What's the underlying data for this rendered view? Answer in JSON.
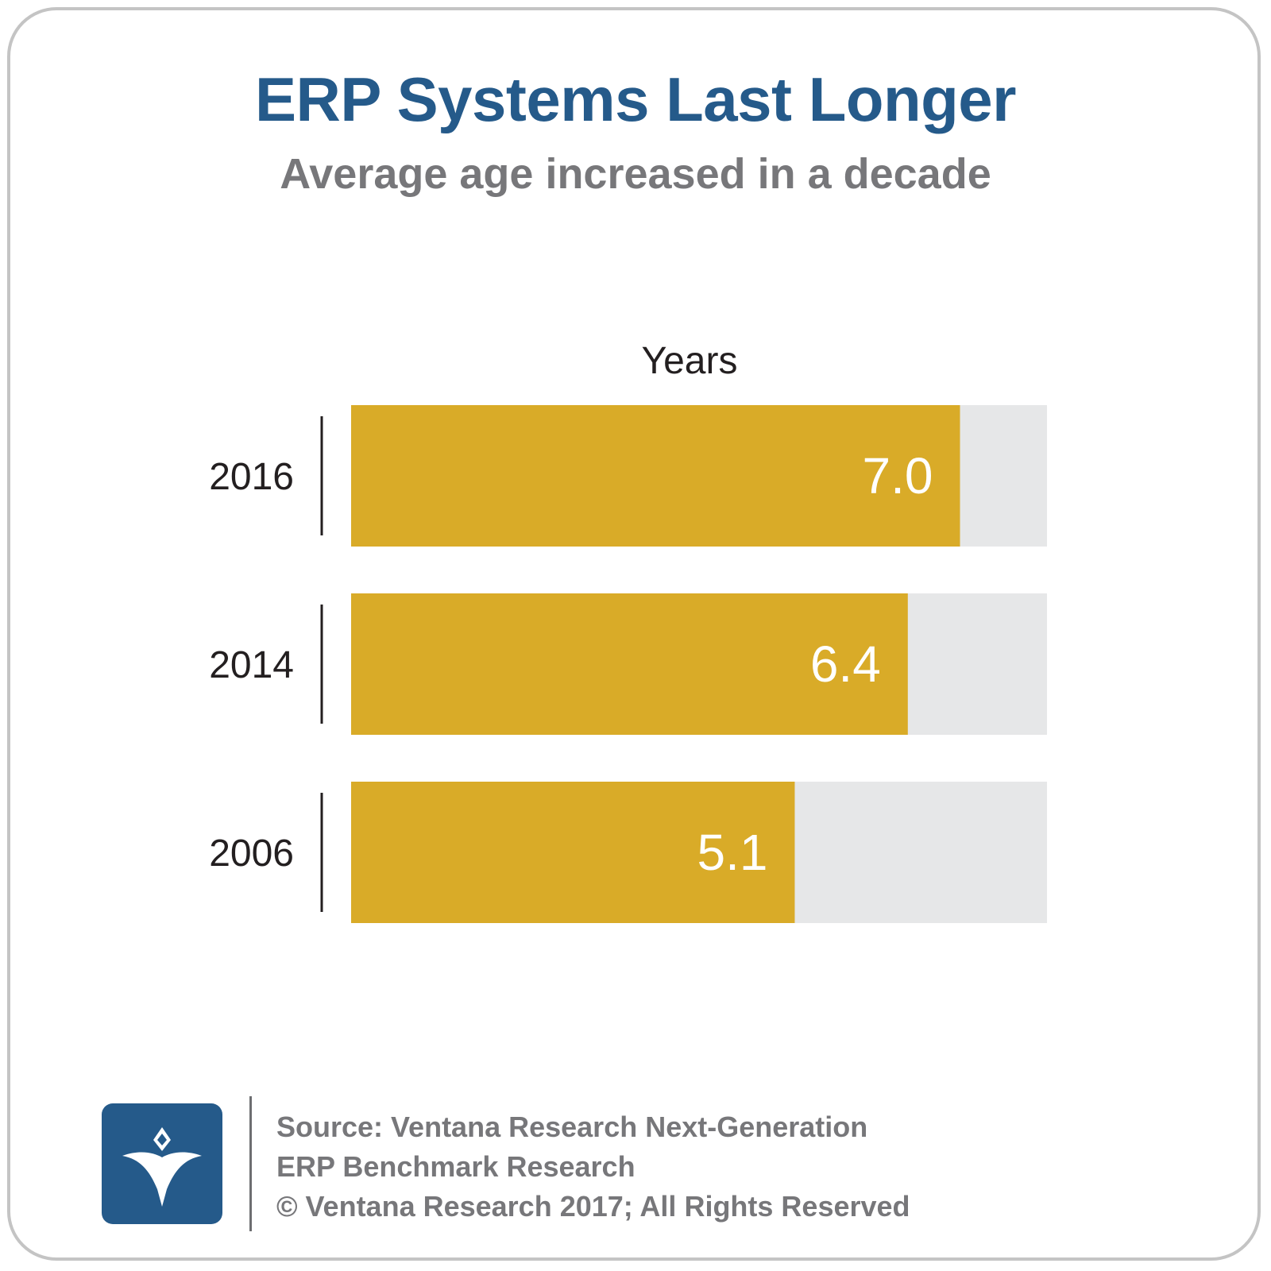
{
  "title": "ERP Systems Last Longer",
  "subtitle": "Average age increased in a decade",
  "chart_data": {
    "type": "bar",
    "orientation": "horizontal",
    "title": "ERP Systems Last Longer",
    "subtitle": "Average age increased in a decade",
    "xlabel": "Years",
    "ylabel": "",
    "categories": [
      "2016",
      "2014",
      "2006"
    ],
    "values": [
      7.0,
      6.4,
      5.1
    ],
    "data_labels": [
      "7.0",
      "6.4",
      "5.1"
    ],
    "xlim": [
      0,
      8
    ],
    "grid": false,
    "legend": "none",
    "bar_color": "#d9ab28",
    "track_color": "#e6e7e8"
  },
  "footer": {
    "source_line_1": "Source: Ventana Research Next-Generation",
    "source_line_2": "ERP Benchmark Research",
    "copyright": "© Ventana Research 2017; All Rights Reserved"
  },
  "logo": {
    "icon": "ventana-v-logo-icon",
    "color": "#255a8a"
  },
  "colors": {
    "title": "#255a8a",
    "subtitle": "#77777a",
    "card_border": "#c4c4c4"
  }
}
